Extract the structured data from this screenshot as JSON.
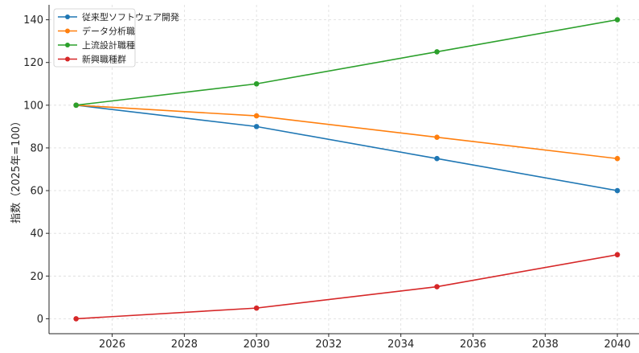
{
  "chart_data": {
    "type": "line",
    "title": "",
    "xlabel": "",
    "ylabel": "指数（2025年=100）",
    "x": [
      2025,
      2030,
      2035,
      2040
    ],
    "xlim": [
      2024.25,
      2040.6
    ],
    "ylim": [
      -7,
      147
    ],
    "xticks": [
      2026,
      2028,
      2030,
      2032,
      2034,
      2036,
      2038,
      2040
    ],
    "yticks": [
      0,
      20,
      40,
      60,
      80,
      100,
      120,
      140
    ],
    "grid": true,
    "legend_position": "top-left",
    "series": [
      {
        "name": "従来型ソフトウェア開発",
        "color": "#1f77b4",
        "values": [
          100,
          90,
          75,
          60
        ]
      },
      {
        "name": "データ分析職",
        "color": "#ff7f0e",
        "values": [
          100,
          95,
          85,
          75
        ]
      },
      {
        "name": "上流設計職種",
        "color": "#2ca02c",
        "values": [
          100,
          110,
          125,
          140
        ]
      },
      {
        "name": "新興職種群",
        "color": "#d62728",
        "values": [
          0,
          5,
          15,
          30
        ]
      }
    ]
  }
}
